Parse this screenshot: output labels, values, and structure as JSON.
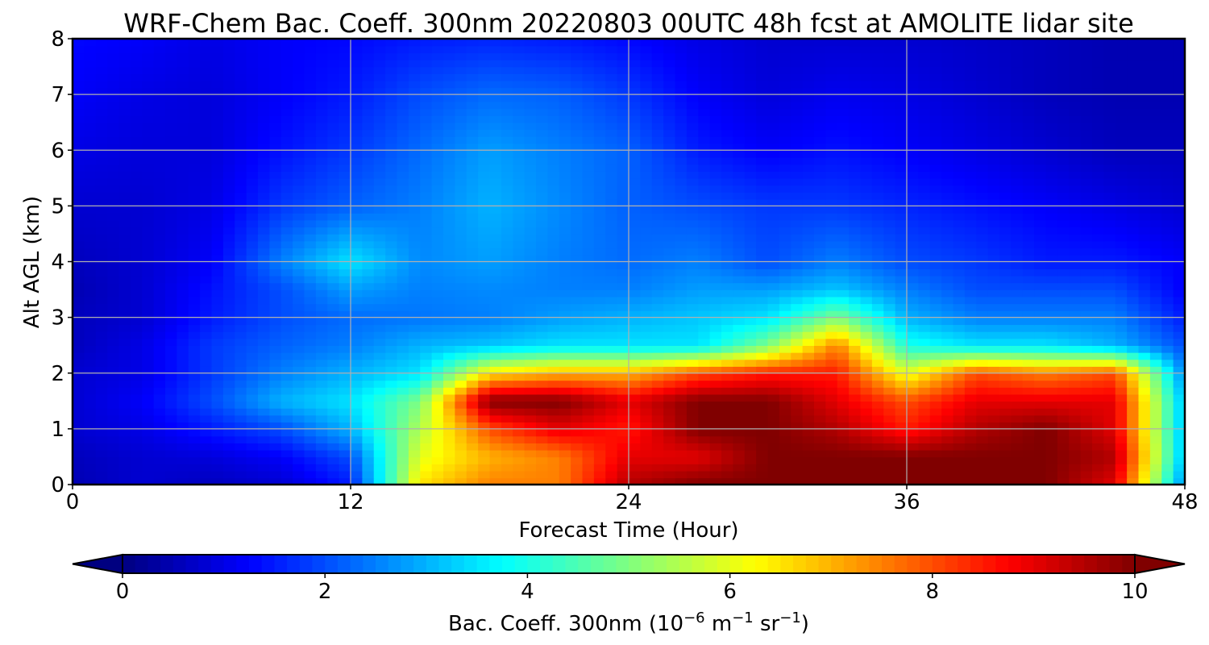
{
  "chart_data": {
    "type": "heatmap",
    "title": "WRF-Chem Bac. Coeff. 300nm  20220803 00UTC 48h fcst at AMOLITE lidar site",
    "xlabel": "Forecast Time (Hour)",
    "ylabel": "Alt AGL (km)",
    "xlim": [
      0,
      48
    ],
    "ylim": [
      0,
      8
    ],
    "xticks": [
      0,
      12,
      24,
      36,
      48
    ],
    "yticks": [
      0,
      1,
      2,
      3,
      4,
      5,
      6,
      7,
      8
    ],
    "grid": true,
    "colormap": "jet",
    "colorbar": {
      "label_main": "Bac. Coeff. 300nm  (10",
      "label_exp1": "−6",
      "label_mid": " m",
      "label_exp2": "−1",
      "label_mid2": " sr",
      "label_exp3": "−1",
      "label_end": ")",
      "range": [
        0,
        10
      ],
      "ticks": [
        0,
        2,
        4,
        6,
        8,
        10
      ],
      "extend": "both",
      "placement": "bottom"
    },
    "x": [
      0,
      3,
      6,
      9,
      12,
      15,
      18,
      21,
      24,
      27,
      30,
      33,
      36,
      39,
      42,
      45,
      48
    ],
    "y": [
      0,
      0.5,
      1,
      1.5,
      2,
      2.5,
      3,
      3.5,
      4,
      5,
      6,
      7,
      8
    ],
    "z": [
      [
        0.5,
        0.8,
        0.6,
        0.8,
        1.5,
        6.5,
        7.5,
        7.5,
        9.5,
        10,
        10,
        10,
        10,
        10,
        10,
        9.0,
        2.5
      ],
      [
        0.6,
        0.8,
        0.9,
        1.2,
        2.0,
        6.0,
        7.0,
        7.5,
        9.0,
        9.0,
        10,
        10,
        10,
        10,
        10,
        9.5,
        3.0
      ],
      [
        0.8,
        1.0,
        1.5,
        2.0,
        3.0,
        5.5,
        8.0,
        9.0,
        8.5,
        10,
        10,
        9.5,
        8.5,
        9.5,
        10,
        9.0,
        3.0
      ],
      [
        0.8,
        1.2,
        2.0,
        3.0,
        3.5,
        5.0,
        10,
        10,
        9.0,
        10,
        10,
        9.0,
        8.0,
        9.0,
        9.0,
        9.0,
        3.0
      ],
      [
        0.8,
        1.0,
        1.8,
        2.5,
        3.0,
        3.5,
        6.5,
        7.0,
        7.0,
        8.0,
        8.5,
        8.5,
        6.0,
        8.0,
        7.5,
        8.0,
        2.5
      ],
      [
        0.6,
        1.0,
        1.8,
        2.2,
        2.5,
        3.0,
        3.2,
        3.5,
        3.5,
        3.5,
        5.0,
        7.5,
        4.0,
        3.5,
        3.5,
        3.0,
        2.0
      ],
      [
        0.6,
        0.8,
        1.5,
        2.0,
        2.3,
        2.4,
        2.5,
        2.8,
        3.0,
        3.2,
        3.5,
        5.0,
        3.0,
        2.5,
        2.5,
        2.5,
        1.5
      ],
      [
        0.5,
        0.8,
        1.4,
        2.0,
        2.8,
        2.5,
        2.6,
        2.5,
        2.5,
        2.8,
        2.8,
        3.2,
        2.5,
        2.0,
        2.0,
        2.0,
        1.2
      ],
      [
        0.6,
        0.8,
        1.2,
        2.5,
        3.5,
        2.6,
        2.8,
        2.5,
        2.3,
        2.5,
        2.0,
        2.5,
        2.0,
        1.8,
        1.5,
        1.5,
        1.2
      ],
      [
        0.8,
        0.8,
        1.0,
        1.8,
        2.2,
        2.5,
        3.0,
        2.6,
        2.2,
        2.0,
        1.8,
        1.8,
        1.6,
        1.4,
        1.2,
        1.0,
        0.8
      ],
      [
        1.0,
        0.9,
        0.9,
        1.4,
        1.8,
        2.3,
        2.8,
        2.5,
        2.2,
        1.5,
        1.2,
        1.4,
        1.2,
        1.0,
        0.8,
        0.6,
        0.6
      ],
      [
        1.2,
        1.0,
        0.9,
        1.2,
        1.5,
        2.0,
        2.3,
        2.2,
        1.8,
        1.2,
        0.9,
        1.1,
        1.0,
        0.8,
        0.6,
        0.5,
        0.5
      ],
      [
        1.3,
        1.2,
        1.0,
        1.2,
        1.3,
        1.5,
        1.6,
        1.5,
        1.3,
        1.0,
        0.8,
        0.8,
        0.8,
        0.7,
        0.6,
        0.5,
        0.5
      ]
    ]
  }
}
